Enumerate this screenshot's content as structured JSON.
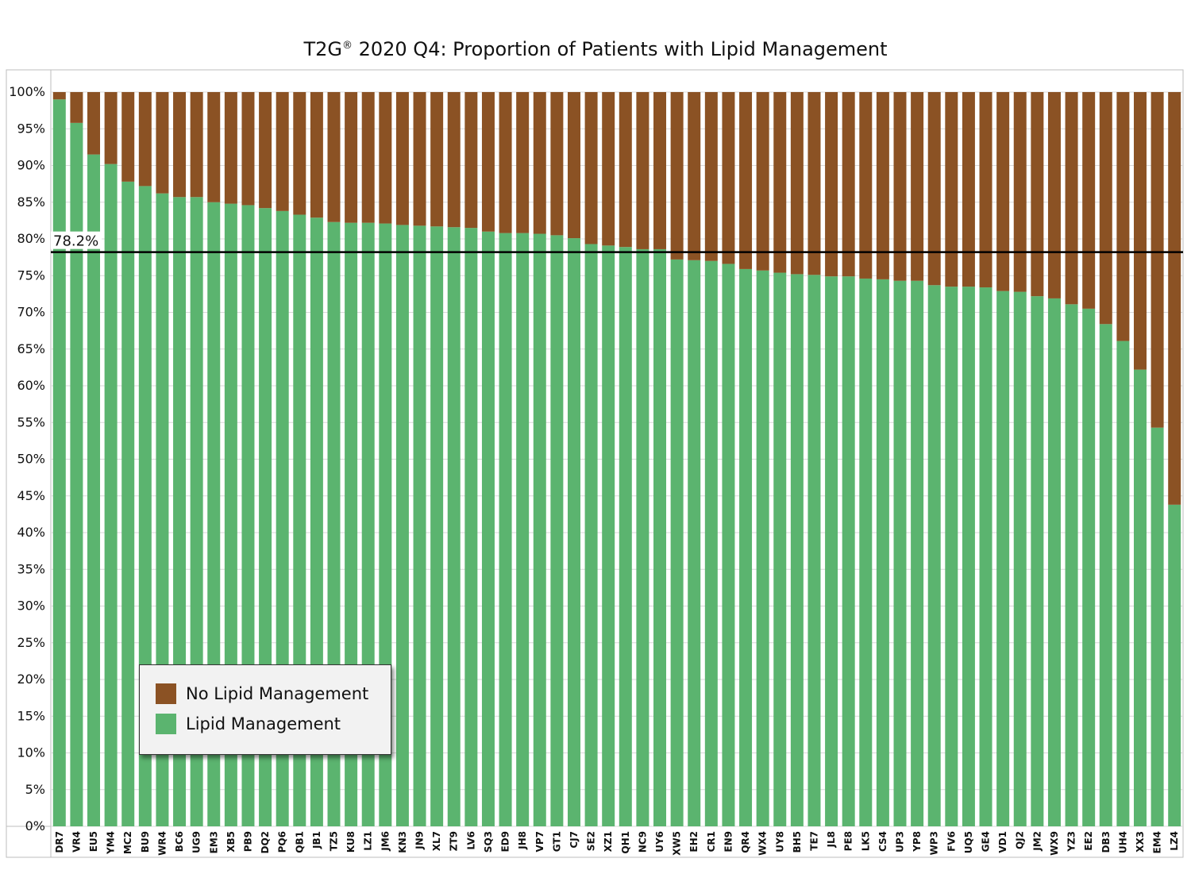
{
  "title": "T2G",
  "title_mark": "®",
  "title_rest": " 2020 Q4: Proportion of Patients with Lipid Management",
  "colors": {
    "lipid": "#5bb46f",
    "no_lipid": "#8b5224",
    "reference_line": "#000000",
    "grid": "#d9d9d9"
  },
  "legend": {
    "no_lipid_label": "No Lipid Management",
    "lipid_label": "Lipid Management",
    "placement": "bottom-left"
  },
  "chart_data": {
    "type": "bar",
    "stacked": true,
    "percent_axis": true,
    "ylim": [
      0,
      100
    ],
    "yticks": [
      "0%",
      "5%",
      "10%",
      "15%",
      "20%",
      "25%",
      "30%",
      "35%",
      "40%",
      "45%",
      "50%",
      "55%",
      "60%",
      "65%",
      "70%",
      "75%",
      "80%",
      "85%",
      "90%",
      "95%",
      "100%"
    ],
    "grid": true,
    "reference_line": {
      "value": 78.2,
      "label": "78.2%"
    },
    "categories": [
      "DR7",
      "VR4",
      "EU5",
      "YM4",
      "MC2",
      "BU9",
      "WR4",
      "BC6",
      "UG9",
      "EM3",
      "XB5",
      "PB9",
      "DQ2",
      "PQ6",
      "QB1",
      "JB1",
      "TZ5",
      "KU8",
      "LZ1",
      "JM6",
      "KN3",
      "JN9",
      "XL7",
      "ZT9",
      "LV6",
      "SQ3",
      "ED9",
      "JH8",
      "VP7",
      "GT1",
      "CJ7",
      "SE2",
      "XZ1",
      "QH1",
      "NC9",
      "UY6",
      "XW5",
      "EH2",
      "CR1",
      "EN9",
      "QR4",
      "WX4",
      "UY8",
      "BH5",
      "TE7",
      "JL8",
      "PE8",
      "LK5",
      "CS4",
      "UP3",
      "YP8",
      "WP3",
      "FV6",
      "UQ5",
      "GE4",
      "VD1",
      "QJ2",
      "JM2",
      "WX9",
      "YZ3",
      "EE2",
      "DB3",
      "UH4",
      "XX3",
      "EM4",
      "LZ4"
    ],
    "series": [
      {
        "name": "Lipid Management",
        "values": [
          99.0,
          95.8,
          91.5,
          90.2,
          87.8,
          87.2,
          86.2,
          85.7,
          85.7,
          85.0,
          84.8,
          84.6,
          84.2,
          83.8,
          83.3,
          82.9,
          82.3,
          82.2,
          82.2,
          82.1,
          81.9,
          81.8,
          81.7,
          81.6,
          81.5,
          81.0,
          80.8,
          80.8,
          80.7,
          80.5,
          80.1,
          79.3,
          79.1,
          78.9,
          78.6,
          78.6,
          77.2,
          77.1,
          77.0,
          76.6,
          75.9,
          75.7,
          75.4,
          75.2,
          75.1,
          74.9,
          74.9,
          74.6,
          74.5,
          74.3,
          74.3,
          73.7,
          73.5,
          73.5,
          73.4,
          72.9,
          72.8,
          72.2,
          71.9,
          71.1,
          70.5,
          68.4,
          66.1,
          62.2,
          54.3,
          43.8
        ]
      },
      {
        "name": "No Lipid Management",
        "values": [
          1.0,
          4.2,
          8.5,
          9.8,
          12.2,
          12.8,
          13.8,
          14.3,
          14.3,
          15.0,
          15.2,
          15.4,
          15.8,
          16.2,
          16.7,
          17.1,
          17.7,
          17.8,
          17.8,
          17.9,
          18.1,
          18.2,
          18.3,
          18.4,
          18.5,
          19.0,
          19.2,
          19.2,
          19.3,
          19.5,
          19.9,
          20.7,
          20.9,
          21.1,
          21.4,
          21.4,
          22.8,
          22.9,
          23.0,
          23.4,
          24.1,
          24.3,
          24.6,
          24.8,
          24.9,
          25.1,
          25.1,
          25.4,
          25.5,
          25.7,
          25.7,
          26.3,
          26.5,
          26.5,
          26.6,
          27.1,
          27.2,
          27.8,
          28.1,
          28.9,
          29.5,
          31.6,
          33.9,
          37.8,
          45.7,
          56.2
        ]
      }
    ]
  }
}
